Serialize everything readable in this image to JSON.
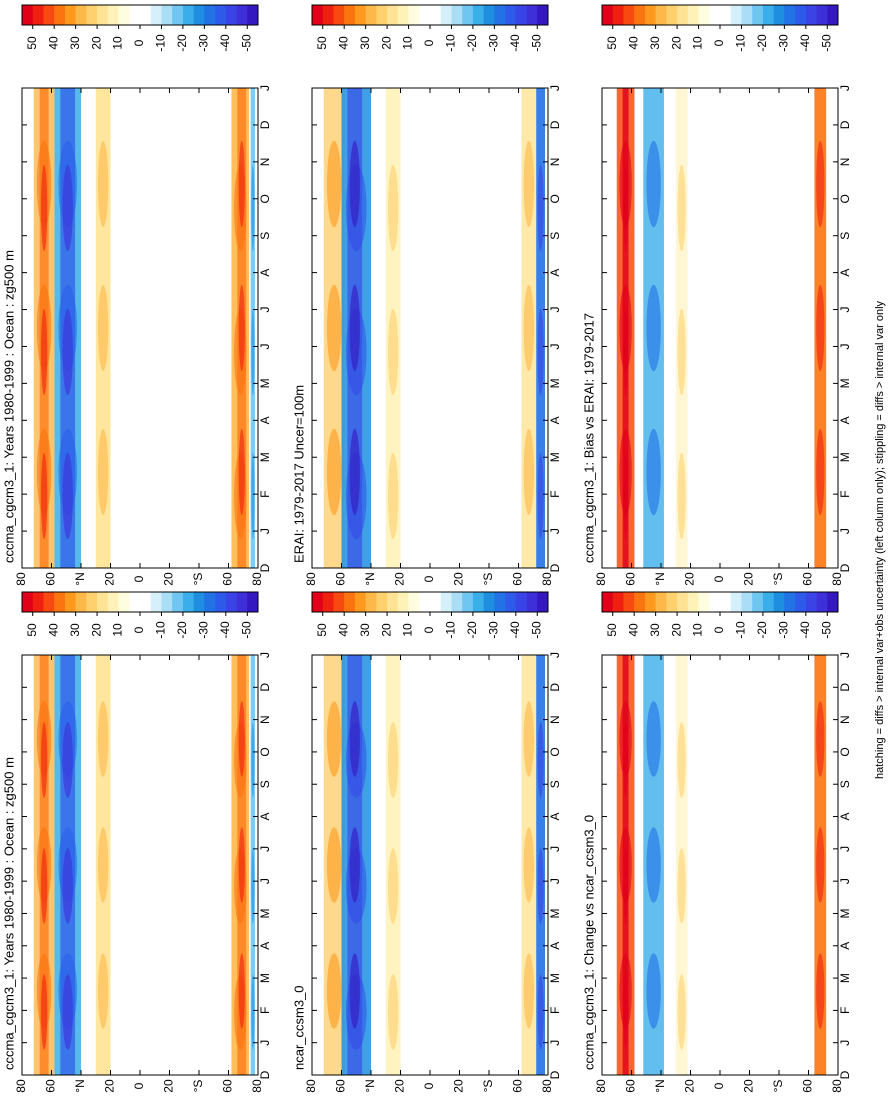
{
  "panels": [
    {
      "title": "cccma_cgcm3_1: Years 1980-1999 : Ocean : zg500 m"
    },
    {
      "title": "cccma_cgcm3_1: Years 1980-1999 : Ocean : zg500 m"
    },
    {
      "title": "ncar_ccsm3_0"
    },
    {
      "title": "ERAI: 1979-2017 Uncer=100m"
    },
    {
      "title": "cccma_cgcm3_1: Change vs ncar_ccsm3_0"
    },
    {
      "title": "cccma_cgcm3_1: Bias vs ERAI: 1979-2017"
    }
  ],
  "months": [
    "D",
    "J",
    "F",
    "M",
    "A",
    "M",
    "J",
    "J",
    "A",
    "S",
    "O",
    "N",
    "D",
    "J"
  ],
  "lat_ticks": [
    80,
    60,
    {
      "value": 40,
      "label": "°N"
    },
    20,
    0,
    {
      "value": -20,
      "label": "20"
    },
    {
      "value": -40,
      "label": "°S"
    },
    {
      "value": -60,
      "label": "60"
    },
    {
      "value": -80,
      "label": "80"
    }
  ],
  "xlim": [
    80,
    -80
  ],
  "colorbar": {
    "clim": [
      55,
      -55
    ],
    "ticks": [
      50,
      40,
      30,
      20,
      10,
      0,
      -10,
      -20,
      -30,
      -40,
      -50
    ],
    "colors": [
      "#e0001a",
      "#f02010",
      "#f84a10",
      "#fc7410",
      "#fd9a1e",
      "#fdb84a",
      "#fed06e",
      "#fee394",
      "#fff2b8",
      "#fffde0",
      "#ffffff",
      "#ffffff",
      "#d6f0fb",
      "#a9def6",
      "#6fc6f0",
      "#3aaeea",
      "#1e8fe0",
      "#2272e6",
      "#2d5ae8",
      "#3a44e6",
      "#3d30d8",
      "#3418c0"
    ]
  },
  "footer": "hatching = diffs > internal var+obs uncertainty (left column only); stippling = diffs > internal var only"
}
